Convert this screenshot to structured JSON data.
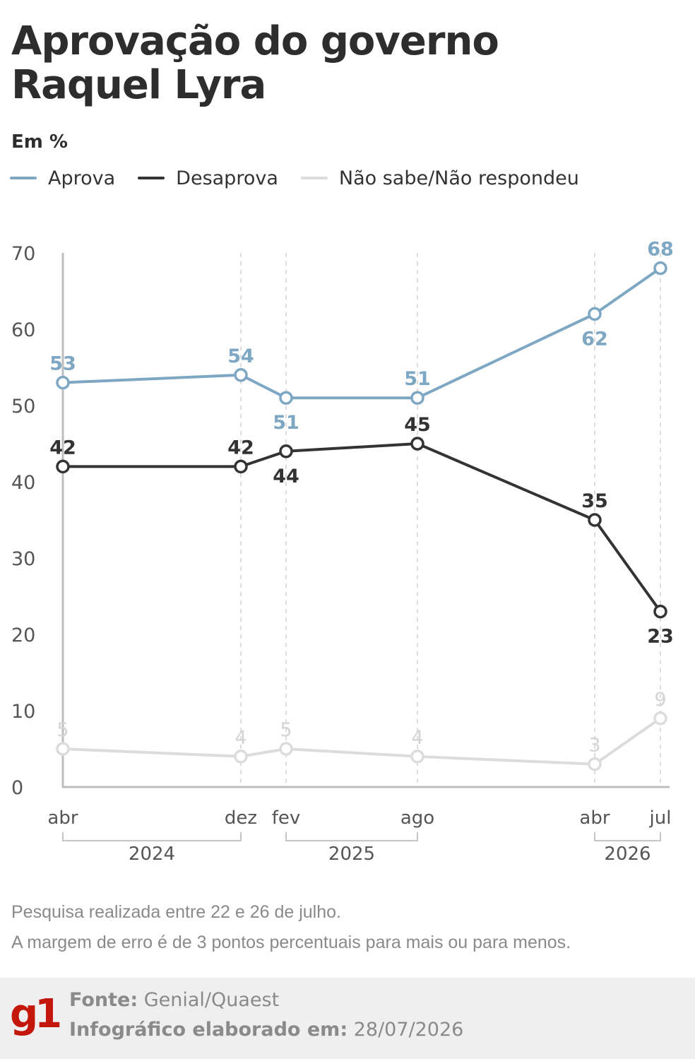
{
  "title_line1": "Aprovação do governo",
  "title_line2": "Raquel Lyra",
  "unit": "Em %",
  "legend": [
    {
      "label": "Aprova",
      "color": "#7ea7c4"
    },
    {
      "label": "Desaprova",
      "color": "#333333"
    },
    {
      "label": "Não sabe/Não respondeu",
      "color": "#dcdcdc"
    }
  ],
  "chart_data": {
    "type": "line",
    "x": [
      "abr",
      "dez",
      "fev",
      "ago",
      "abr",
      "jul"
    ],
    "x_dates": [
      "2024-04",
      "2024-12",
      "2025-02",
      "2025-08",
      "2026-04",
      "2026-07"
    ],
    "year_groups": [
      {
        "label": "2024",
        "from": 0,
        "to": 1
      },
      {
        "label": "2025",
        "from": 2,
        "to": 3
      },
      {
        "label": "2026",
        "from": 4,
        "to": 5
      }
    ],
    "yticks": [
      0,
      10,
      20,
      30,
      40,
      50,
      60,
      70
    ],
    "ylim": [
      0,
      70
    ],
    "grid": "vertical dashed",
    "series": [
      {
        "name": "Aprova",
        "color": "#7ea7c4",
        "values": [
          53,
          54,
          51,
          51,
          62,
          68
        ]
      },
      {
        "name": "Desaprova",
        "color": "#333333",
        "values": [
          42,
          42,
          44,
          45,
          35,
          23
        ]
      },
      {
        "name": "Não sabe/Não respondeu",
        "color": "#dcdcdc",
        "values": [
          5,
          4,
          5,
          4,
          3,
          9
        ]
      }
    ]
  },
  "notes": [
    "Pesquisa realizada entre 22 e 26 de julho.",
    "A margem de erro é de 3 pontos percentuais para mais ou para menos."
  ],
  "footer": {
    "logo": "g1",
    "source_label": "Fonte:",
    "source_value": "Genial/Quaest",
    "date_label": "Infográfico elaborado em:",
    "date_value": "28/07/2026"
  }
}
